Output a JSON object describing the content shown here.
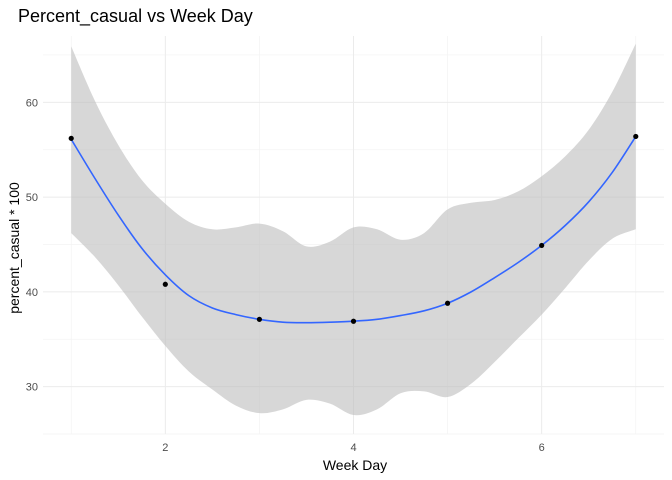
{
  "chart_data": {
    "type": "scatter",
    "title": "Percent_casual vs Week Day",
    "xlabel": "Week Day",
    "ylabel": "percent_casual * 100",
    "xlim": [
      0.7,
      7.3
    ],
    "ylim": [
      25,
      67
    ],
    "x_ticks": [
      2,
      4,
      6
    ],
    "y_ticks": [
      30,
      40,
      50,
      60
    ],
    "grid": true,
    "series": [
      {
        "points": [
          {
            "x": 1,
            "y": 56.2
          },
          {
            "x": 2,
            "y": 40.8
          },
          {
            "x": 3,
            "y": 37.1
          },
          {
            "x": 4,
            "y": 36.9
          },
          {
            "x": 5,
            "y": 38.8
          },
          {
            "x": 6,
            "y": 44.9
          },
          {
            "x": 7,
            "y": 56.4
          }
        ],
        "color": "#000000"
      }
    ],
    "smooth": {
      "color": "#3366ff",
      "band_color": "#bebebe",
      "fit": [
        {
          "x": 1.0,
          "y": 56.1
        },
        {
          "x": 1.25,
          "y": 52.0
        },
        {
          "x": 1.5,
          "y": 48.1
        },
        {
          "x": 1.75,
          "y": 44.6
        },
        {
          "x": 2.0,
          "y": 41.8
        },
        {
          "x": 2.25,
          "y": 39.6
        },
        {
          "x": 2.5,
          "y": 38.3
        },
        {
          "x": 2.75,
          "y": 37.6
        },
        {
          "x": 3.0,
          "y": 37.1
        },
        {
          "x": 3.25,
          "y": 36.8
        },
        {
          "x": 3.5,
          "y": 36.75
        },
        {
          "x": 3.75,
          "y": 36.8
        },
        {
          "x": 4.0,
          "y": 36.9
        },
        {
          "x": 4.25,
          "y": 37.1
        },
        {
          "x": 4.5,
          "y": 37.5
        },
        {
          "x": 4.75,
          "y": 38.0
        },
        {
          "x": 5.0,
          "y": 38.8
        },
        {
          "x": 5.25,
          "y": 40.0
        },
        {
          "x": 5.5,
          "y": 41.5
        },
        {
          "x": 5.75,
          "y": 43.1
        },
        {
          "x": 6.0,
          "y": 44.9
        },
        {
          "x": 6.25,
          "y": 47.0
        },
        {
          "x": 6.5,
          "y": 49.5
        },
        {
          "x": 6.75,
          "y": 52.6
        },
        {
          "x": 7.0,
          "y": 56.4
        }
      ],
      "upper": [
        {
          "x": 1.0,
          "y": 65.9
        },
        {
          "x": 1.25,
          "y": 60.2
        },
        {
          "x": 1.5,
          "y": 55.5
        },
        {
          "x": 1.75,
          "y": 51.8
        },
        {
          "x": 2.0,
          "y": 49.3
        },
        {
          "x": 2.25,
          "y": 47.4
        },
        {
          "x": 2.5,
          "y": 46.6
        },
        {
          "x": 2.75,
          "y": 46.8
        },
        {
          "x": 3.0,
          "y": 47.2
        },
        {
          "x": 3.25,
          "y": 46.4
        },
        {
          "x": 3.5,
          "y": 44.8
        },
        {
          "x": 3.75,
          "y": 45.3
        },
        {
          "x": 4.0,
          "y": 46.8
        },
        {
          "x": 4.25,
          "y": 46.6
        },
        {
          "x": 4.5,
          "y": 45.5
        },
        {
          "x": 4.75,
          "y": 46.2
        },
        {
          "x": 5.0,
          "y": 48.7
        },
        {
          "x": 5.25,
          "y": 49.4
        },
        {
          "x": 5.5,
          "y": 49.7
        },
        {
          "x": 5.75,
          "y": 50.6
        },
        {
          "x": 6.0,
          "y": 52.2
        },
        {
          "x": 6.25,
          "y": 54.3
        },
        {
          "x": 6.5,
          "y": 57.1
        },
        {
          "x": 6.75,
          "y": 61.1
        },
        {
          "x": 7.0,
          "y": 66.2
        }
      ],
      "lower": [
        {
          "x": 1.0,
          "y": 46.2
        },
        {
          "x": 1.25,
          "y": 43.7
        },
        {
          "x": 1.5,
          "y": 40.7
        },
        {
          "x": 1.75,
          "y": 37.4
        },
        {
          "x": 2.0,
          "y": 34.3
        },
        {
          "x": 2.25,
          "y": 31.6
        },
        {
          "x": 2.5,
          "y": 29.7
        },
        {
          "x": 2.75,
          "y": 28.0
        },
        {
          "x": 3.0,
          "y": 27.2
        },
        {
          "x": 3.25,
          "y": 27.6
        },
        {
          "x": 3.5,
          "y": 28.6
        },
        {
          "x": 3.75,
          "y": 28.2
        },
        {
          "x": 4.0,
          "y": 27.0
        },
        {
          "x": 4.25,
          "y": 27.6
        },
        {
          "x": 4.5,
          "y": 29.3
        },
        {
          "x": 4.75,
          "y": 29.5
        },
        {
          "x": 5.0,
          "y": 28.9
        },
        {
          "x": 5.25,
          "y": 30.3
        },
        {
          "x": 5.5,
          "y": 32.6
        },
        {
          "x": 5.75,
          "y": 35.1
        },
        {
          "x": 6.0,
          "y": 37.6
        },
        {
          "x": 6.25,
          "y": 40.4
        },
        {
          "x": 6.5,
          "y": 43.3
        },
        {
          "x": 6.75,
          "y": 45.6
        },
        {
          "x": 7.0,
          "y": 46.6
        }
      ]
    }
  }
}
